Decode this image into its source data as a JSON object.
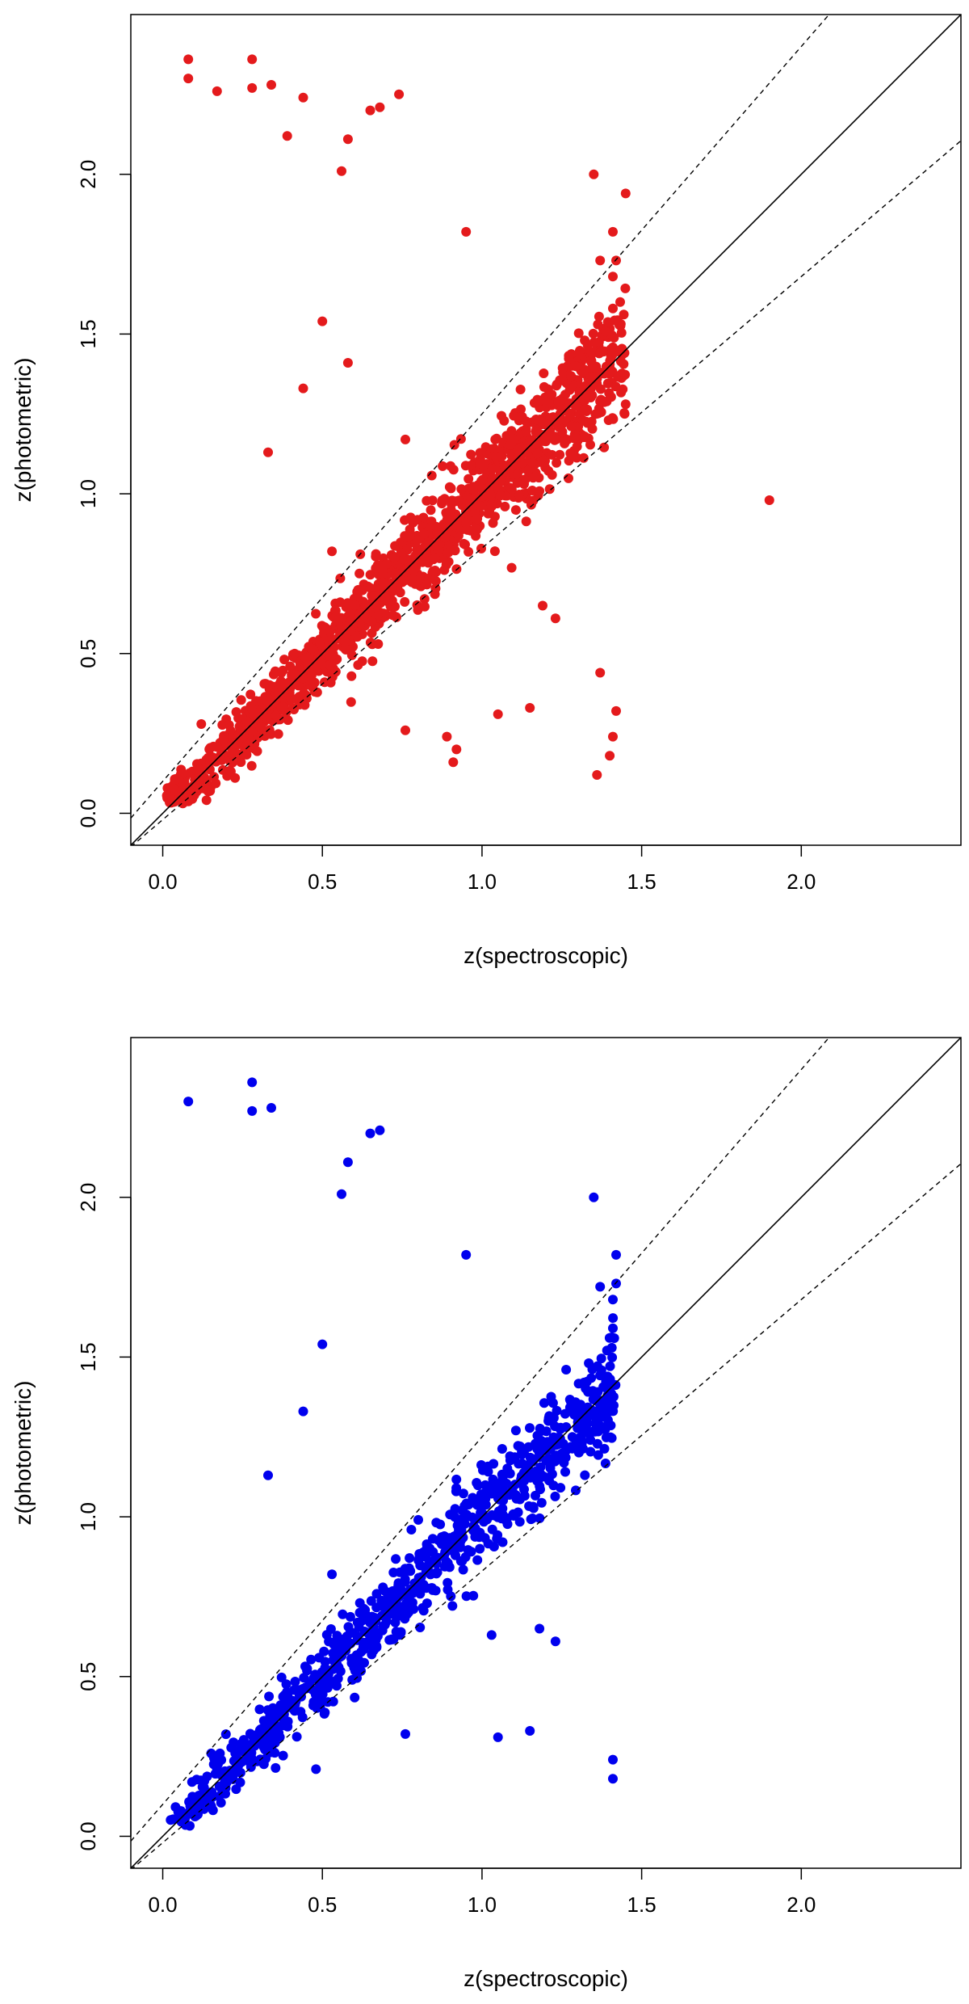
{
  "chart_data": [
    {
      "type": "scatter",
      "xlabel": "z(spectroscopic)",
      "ylabel": "z(photometric)",
      "xlim": [
        -0.1,
        2.5
      ],
      "ylim": [
        -0.1,
        2.5
      ],
      "xticks": [
        "0.0",
        "0.5",
        "1.0",
        "1.5",
        "2.0"
      ],
      "yticks": [
        "0.0",
        "0.5",
        "1.0",
        "1.5",
        "2.0"
      ],
      "grid": false,
      "point_color": "#e41a1c",
      "reference_lines": {
        "identity_slope": 1,
        "dashed_upper_offset": 0.1,
        "dashed_upper_scale": 1.15,
        "dashed_lower_scale": 0.85,
        "dashed_lower_offset": -0.02
      },
      "outliers": [
        [
          0.08,
          2.36
        ],
        [
          0.08,
          2.3
        ],
        [
          0.17,
          2.26
        ],
        [
          0.28,
          2.36
        ],
        [
          0.28,
          2.27
        ],
        [
          0.34,
          2.28
        ],
        [
          0.39,
          2.12
        ],
        [
          0.44,
          2.24
        ],
        [
          0.56,
          2.01
        ],
        [
          0.58,
          2.11
        ],
        [
          0.65,
          2.2
        ],
        [
          0.68,
          2.21
        ],
        [
          0.74,
          2.25
        ],
        [
          0.95,
          1.82
        ],
        [
          1.35,
          2.0
        ],
        [
          1.45,
          1.94
        ],
        [
          1.41,
          1.82
        ],
        [
          1.37,
          1.73
        ],
        [
          1.42,
          1.73
        ],
        [
          1.41,
          1.68
        ],
        [
          1.41,
          1.58
        ],
        [
          0.5,
          1.54
        ],
        [
          0.58,
          1.41
        ],
        [
          0.44,
          1.33
        ],
        [
          0.33,
          1.13
        ],
        [
          1.9,
          0.98
        ],
        [
          1.37,
          0.44
        ],
        [
          1.42,
          0.32
        ],
        [
          1.41,
          0.24
        ],
        [
          1.4,
          0.18
        ],
        [
          1.36,
          0.12
        ],
        [
          1.05,
          0.31
        ],
        [
          1.15,
          0.33
        ],
        [
          0.91,
          0.16
        ],
        [
          0.92,
          0.2
        ],
        [
          0.89,
          0.24
        ],
        [
          1.23,
          0.61
        ],
        [
          1.19,
          0.65
        ],
        [
          0.76,
          0.26
        ],
        [
          0.53,
          0.82
        ],
        [
          0.76,
          1.17
        ]
      ],
      "main_count": 1400,
      "main_x_range": [
        0.01,
        1.45
      ],
      "main_scatter": 0.07
    },
    {
      "type": "scatter",
      "xlabel": "z(spectroscopic)",
      "ylabel": "z(photometric)",
      "xlim": [
        -0.1,
        2.5
      ],
      "ylim": [
        -0.1,
        2.5
      ],
      "xticks": [
        "0.0",
        "0.5",
        "1.0",
        "1.5",
        "2.0"
      ],
      "yticks": [
        "0.0",
        "0.5",
        "1.0",
        "1.5",
        "2.0"
      ],
      "grid": false,
      "point_color": "#0000ee",
      "reference_lines": {
        "identity_slope": 1,
        "dashed_upper_offset": 0.1,
        "dashed_upper_scale": 1.15,
        "dashed_lower_scale": 0.85,
        "dashed_lower_offset": -0.02
      },
      "outliers": [
        [
          0.08,
          2.3
        ],
        [
          0.28,
          2.36
        ],
        [
          0.28,
          2.27
        ],
        [
          0.34,
          2.28
        ],
        [
          0.56,
          2.01
        ],
        [
          0.58,
          2.11
        ],
        [
          0.65,
          2.2
        ],
        [
          0.68,
          2.21
        ],
        [
          0.95,
          1.82
        ],
        [
          1.35,
          2.0
        ],
        [
          1.42,
          1.82
        ],
        [
          1.37,
          1.72
        ],
        [
          1.42,
          1.73
        ],
        [
          1.41,
          1.68
        ],
        [
          1.41,
          1.59
        ],
        [
          0.5,
          1.54
        ],
        [
          0.44,
          1.33
        ],
        [
          0.33,
          1.13
        ],
        [
          1.41,
          0.24
        ],
        [
          1.41,
          0.18
        ],
        [
          1.05,
          0.31
        ],
        [
          1.15,
          0.33
        ],
        [
          1.23,
          0.61
        ],
        [
          1.18,
          0.65
        ],
        [
          1.03,
          0.63
        ],
        [
          0.76,
          0.32
        ],
        [
          0.53,
          0.82
        ],
        [
          0.48,
          0.21
        ]
      ],
      "main_count": 850,
      "main_x_range": [
        0.01,
        1.42
      ],
      "main_scatter": 0.065
    }
  ]
}
